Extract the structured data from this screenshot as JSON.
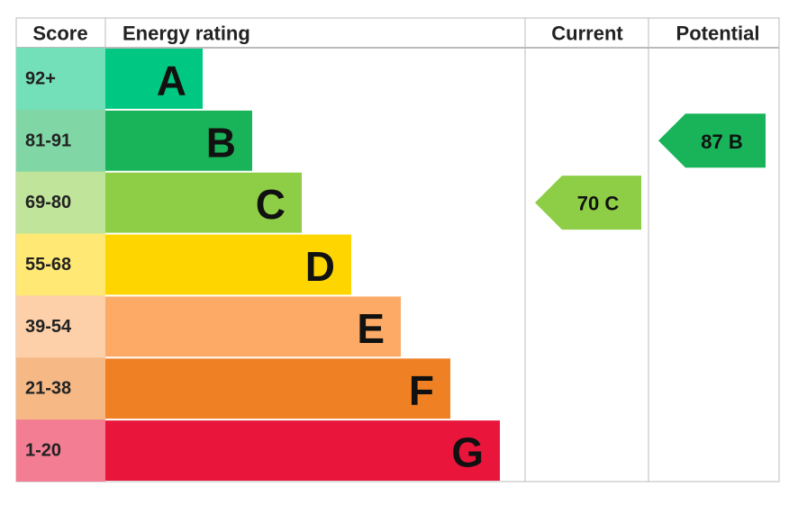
{
  "header": {
    "score": "Score",
    "rating": "Energy rating",
    "current": "Current",
    "potential": "Potential"
  },
  "bands": [
    {
      "score": "92+",
      "letter": "A",
      "color": "#00c781"
    },
    {
      "score": "81-91",
      "letter": "B",
      "color": "#19b459"
    },
    {
      "score": "69-80",
      "letter": "C",
      "color": "#8dce46"
    },
    {
      "score": "55-68",
      "letter": "D",
      "color": "#ffd500"
    },
    {
      "score": "39-54",
      "letter": "E",
      "color": "#fcaa65"
    },
    {
      "score": "21-38",
      "letter": "F",
      "color": "#ef8023"
    },
    {
      "score": "1-20",
      "letter": "G",
      "color": "#e9153b"
    }
  ],
  "current": {
    "value": 70,
    "label": "70 C"
  },
  "potential": {
    "value": 87,
    "label": "87 B"
  }
}
